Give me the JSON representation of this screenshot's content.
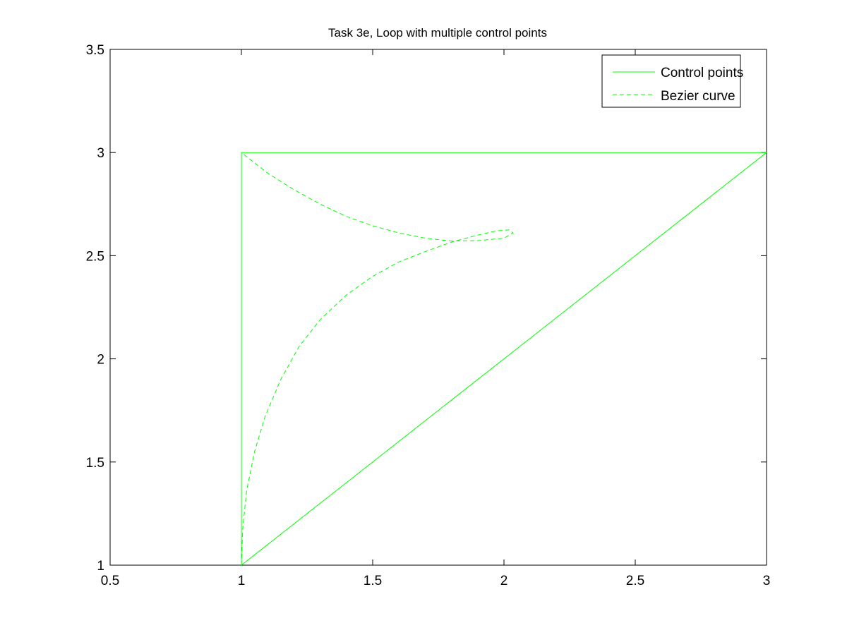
{
  "chart_data": {
    "type": "line",
    "title": "Task 3e, Loop with multiple control points",
    "xlabel": "",
    "ylabel": "",
    "xlim": [
      0.5,
      3
    ],
    "ylim": [
      1,
      3.5
    ],
    "x_ticks": [
      0.5,
      1,
      1.5,
      2,
      2.5,
      3
    ],
    "y_ticks": [
      1,
      1.5,
      2,
      2.5,
      3,
      3.5
    ],
    "x_tick_labels": [
      "0.5",
      "1",
      "1.5",
      "2",
      "2.5",
      "3"
    ],
    "y_tick_labels": [
      "1",
      "1.5",
      "2",
      "2.5",
      "3",
      "3.5"
    ],
    "grid": false,
    "legend_position": "top-right",
    "series": [
      {
        "name": "Control points",
        "style": "solid",
        "color": "#00ff00",
        "points": [
          [
            1,
            1
          ],
          [
            3,
            3
          ],
          [
            1,
            3
          ],
          [
            1,
            1
          ]
        ]
      },
      {
        "name": "Bezier curve",
        "style": "dashed",
        "color": "#00ff00",
        "points": [
          [
            1.0,
            1.0
          ],
          [
            1.005,
            1.18
          ],
          [
            1.02,
            1.36
          ],
          [
            1.05,
            1.55
          ],
          [
            1.09,
            1.72
          ],
          [
            1.15,
            1.9
          ],
          [
            1.22,
            2.06
          ],
          [
            1.3,
            2.19
          ],
          [
            1.4,
            2.31
          ],
          [
            1.5,
            2.4
          ],
          [
            1.6,
            2.47
          ],
          [
            1.7,
            2.52
          ],
          [
            1.8,
            2.566
          ],
          [
            1.9,
            2.6
          ],
          [
            1.97,
            2.62
          ],
          [
            2.02,
            2.625
          ],
          [
            2.035,
            2.61
          ],
          [
            2.0,
            2.585
          ],
          [
            1.9,
            2.573
          ],
          [
            1.8,
            2.571
          ],
          [
            1.7,
            2.585
          ],
          [
            1.6,
            2.61
          ],
          [
            1.5,
            2.645
          ],
          [
            1.4,
            2.69
          ],
          [
            1.3,
            2.75
          ],
          [
            1.2,
            2.82
          ],
          [
            1.1,
            2.9
          ],
          [
            1.0,
            3.0
          ]
        ]
      }
    ]
  }
}
